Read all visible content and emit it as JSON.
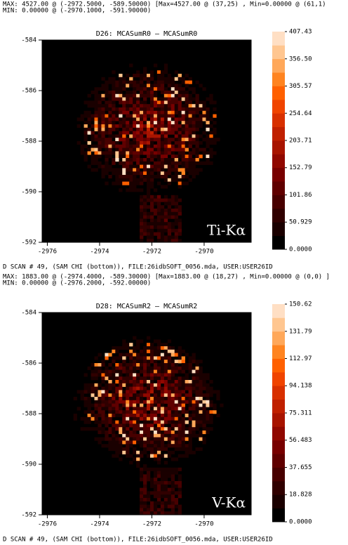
{
  "chart_data": [
    {
      "type": "heatmap",
      "header_lines": [
        "MAX: 4527.00 @ (-2972.5000, -589.50000) [Max=4527.00 @ (37,25) , Min=0.00000 @ (61,1)",
        "MIN: 0.00000 @ (-2970.1000, -591.90000)"
      ],
      "title": "D26: MCASumR0 — MCASumR0",
      "annotation": "Ti-Kα",
      "footer": "D SCAN # 49,  (SAM CHI (bottom)), FILE:26idbSOFT_0056.mda,  USER:USER26ID",
      "xlim": [
        -2976.2,
        -2968.2
      ],
      "xticks": [
        -2976,
        -2974,
        -2972,
        -2970
      ],
      "ylim": [
        -592,
        -584
      ],
      "yticks": [
        -584,
        -586,
        -588,
        -590,
        -592
      ],
      "clim": [
        0,
        407.43
      ],
      "colorbar_ticks": [
        407.43,
        {
          "value": 356.5,
          "label": "356.50"
        },
        305.57,
        254.64,
        203.71,
        152.79,
        101.86,
        50.929,
        {
          "value": 0,
          "label": "0.0000"
        }
      ],
      "colormap": [
        "#000000",
        "#1a0000",
        "#300000",
        "#480000",
        "#600000",
        "#780000",
        "#900800",
        "#a81400",
        "#c02000",
        "#d83000",
        "#f04400",
        "#ff6000",
        "#ff8420",
        "#ffa85a",
        "#ffc690",
        "#ffdfc4"
      ]
    },
    {
      "type": "heatmap",
      "header_lines": [
        "MAX: 1883.00 @ (-2974.4000, -589.30000) [Max=1883.00 @ (18,27) , Min=0.00000 @ (0,0) ]",
        "MIN: 0.00000 @ (-2976.2000, -592.00000)"
      ],
      "title": "D28: MCASumR2 — MCASumR2",
      "annotation": "V-Kα",
      "footer": "D SCAN # 49,  (SAM CHI (bottom)), FILE:26idbSOFT_0056.mda,  USER:USER26ID",
      "xlim": [
        -2976.2,
        -2968.2
      ],
      "xticks": [
        -2976,
        -2974,
        -2972,
        -2970
      ],
      "ylim": [
        -592,
        -584
      ],
      "yticks": [
        -584,
        -586,
        -588,
        -590,
        -592
      ],
      "clim": [
        0,
        150.62
      ],
      "colorbar_ticks": [
        150.62,
        131.79,
        112.97,
        94.138,
        75.311,
        56.483,
        37.655,
        18.828,
        {
          "value": 0,
          "label": "0.0000"
        }
      ],
      "colormap": [
        "#000000",
        "#1a0000",
        "#300000",
        "#480000",
        "#600000",
        "#780000",
        "#900800",
        "#a81400",
        "#c02000",
        "#d83000",
        "#f04400",
        "#ff6000",
        "#ff8420",
        "#ffa85a",
        "#ffc690",
        "#ffdfc4"
      ]
    }
  ]
}
